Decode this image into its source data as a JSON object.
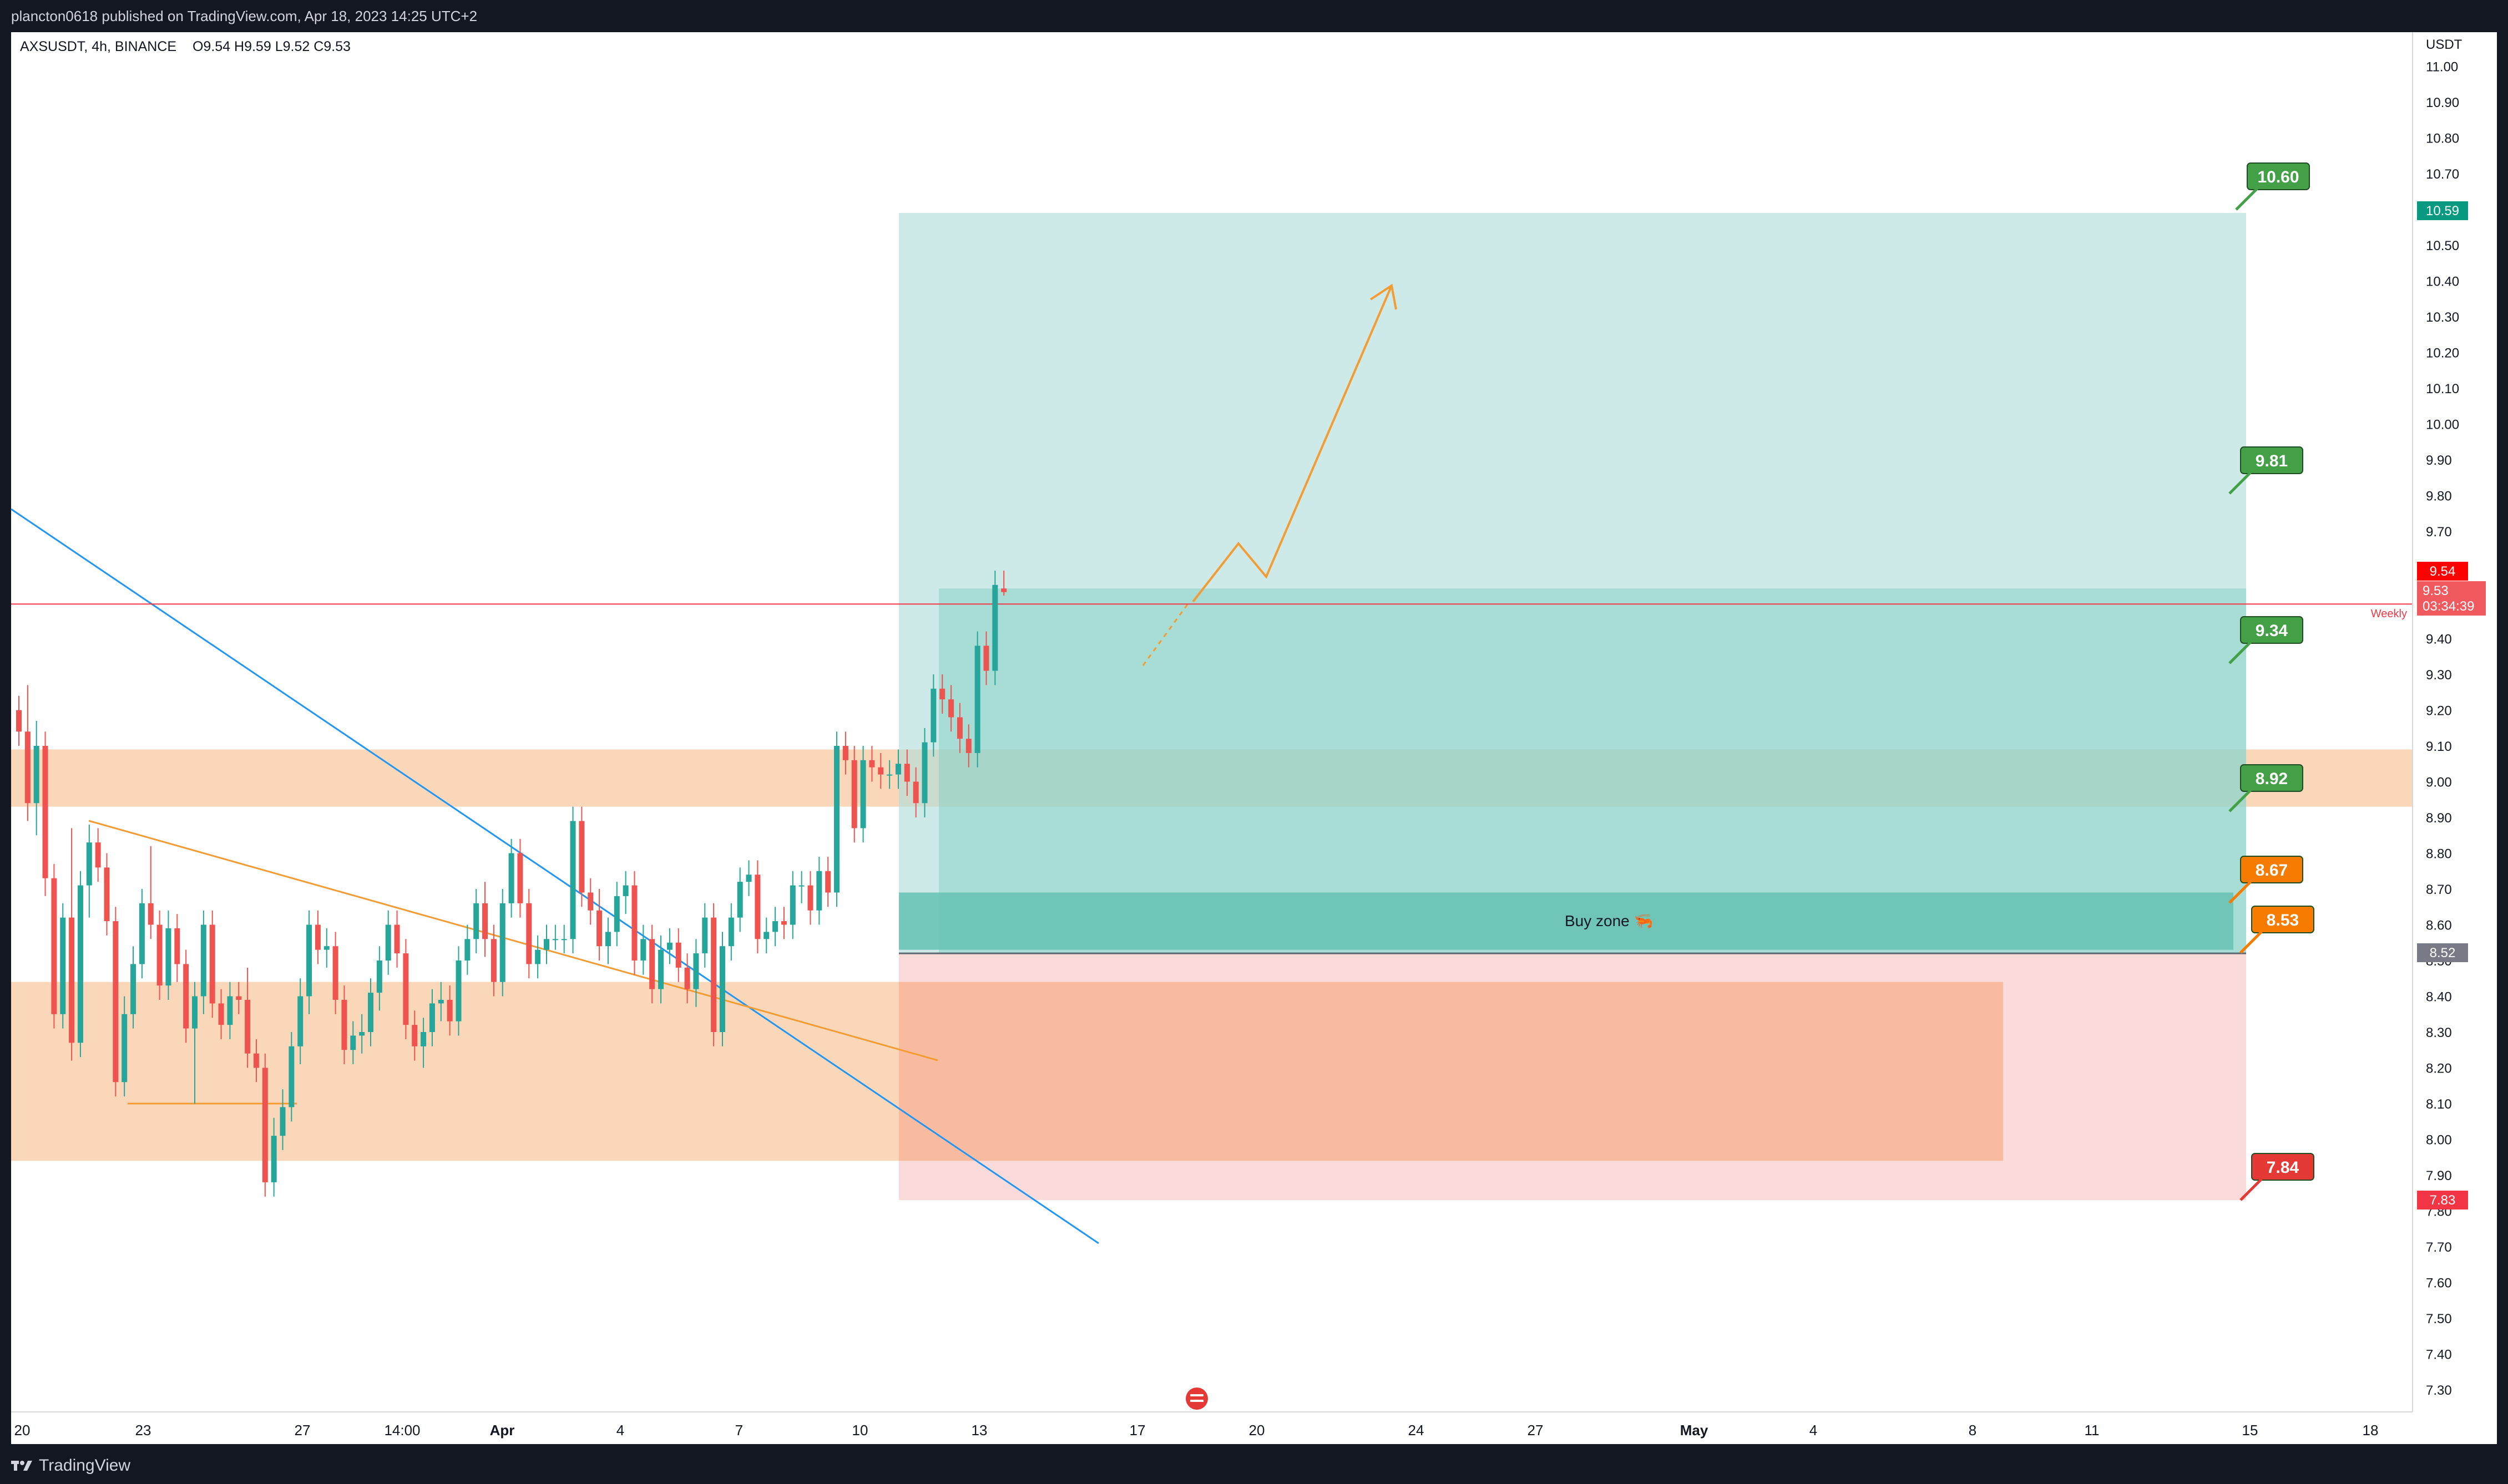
{
  "header": {
    "published": "plancton0618 published on TradingView.com, Apr 18, 2023 14:25 UTC+2",
    "symbol": "AXSUSDT, 4h, BINANCE",
    "ohlc": "O9.54  H9.59  L9.52  C9.53"
  },
  "footer": {
    "brand": "TradingView"
  },
  "chart_data": {
    "type": "candlestick",
    "currency_label": "USDT",
    "ylim": [
      7.2,
      11.03
    ],
    "y_ticks": [
      "11.00",
      "10.90",
      "10.80",
      "10.70",
      "10.60",
      "10.50",
      "10.40",
      "10.30",
      "10.20",
      "10.10",
      "10.00",
      "9.90",
      "9.80",
      "9.70",
      "9.60",
      "9.50",
      "9.40",
      "9.30",
      "9.20",
      "9.10",
      "9.00",
      "8.90",
      "8.80",
      "8.70",
      "8.60",
      "8.50",
      "8.40",
      "8.30",
      "8.20",
      "8.10",
      "8.00",
      "7.90",
      "7.80",
      "7.70",
      "7.60",
      "7.50",
      "7.40",
      "7.30"
    ],
    "x_ticks": [
      "20",
      "23",
      "27",
      "14:00",
      "Apr",
      "4",
      "7",
      "10",
      "13",
      "17",
      "20",
      "24",
      "27",
      "May",
      "4",
      "8",
      "11",
      "15",
      "18"
    ],
    "candles": [
      [
        9.2,
        9.24,
        9.1,
        9.14
      ],
      [
        9.14,
        9.27,
        8.89,
        8.94
      ],
      [
        8.94,
        9.17,
        8.85,
        9.1
      ],
      [
        9.1,
        9.14,
        8.68,
        8.73
      ],
      [
        8.73,
        8.77,
        8.31,
        8.35
      ],
      [
        8.35,
        8.66,
        8.31,
        8.62
      ],
      [
        8.62,
        8.87,
        8.22,
        8.27
      ],
      [
        8.27,
        8.75,
        8.23,
        8.71
      ],
      [
        8.71,
        8.88,
        8.62,
        8.83
      ],
      [
        8.83,
        8.87,
        8.72,
        8.76
      ],
      [
        8.76,
        8.8,
        8.57,
        8.61
      ],
      [
        8.61,
        8.65,
        8.12,
        8.16
      ],
      [
        8.16,
        8.4,
        8.12,
        8.35
      ],
      [
        8.35,
        8.54,
        8.31,
        8.49
      ],
      [
        8.49,
        8.7,
        8.45,
        8.66
      ],
      [
        8.66,
        8.82,
        8.56,
        8.6
      ],
      [
        8.6,
        8.64,
        8.39,
        8.43
      ],
      [
        8.43,
        8.64,
        8.39,
        8.59
      ],
      [
        8.59,
        8.63,
        8.44,
        8.49
      ],
      [
        8.49,
        8.53,
        8.27,
        8.31
      ],
      [
        8.31,
        8.44,
        8.1,
        8.4
      ],
      [
        8.4,
        8.64,
        8.35,
        8.6
      ],
      [
        8.6,
        8.64,
        8.34,
        8.38
      ],
      [
        8.38,
        8.42,
        8.28,
        8.32
      ],
      [
        8.32,
        8.44,
        8.28,
        8.4
      ],
      [
        8.4,
        8.44,
        8.35,
        8.39
      ],
      [
        8.39,
        8.48,
        8.2,
        8.24
      ],
      [
        8.24,
        8.28,
        8.16,
        8.2
      ],
      [
        8.2,
        8.24,
        7.84,
        7.88
      ],
      [
        7.88,
        8.06,
        7.84,
        8.01
      ],
      [
        8.01,
        8.14,
        7.97,
        8.09
      ],
      [
        8.09,
        8.3,
        8.05,
        8.26
      ],
      [
        8.26,
        8.45,
        8.21,
        8.4
      ],
      [
        8.4,
        8.64,
        8.35,
        8.6
      ],
      [
        8.6,
        8.64,
        8.49,
        8.53
      ],
      [
        8.53,
        8.59,
        8.48,
        8.54
      ],
      [
        8.54,
        8.58,
        8.35,
        8.39
      ],
      [
        8.39,
        8.43,
        8.21,
        8.25
      ],
      [
        8.25,
        8.33,
        8.21,
        8.29
      ],
      [
        8.29,
        8.35,
        8.24,
        8.3
      ],
      [
        8.3,
        8.45,
        8.26,
        8.41
      ],
      [
        8.41,
        8.54,
        8.36,
        8.5
      ],
      [
        8.5,
        8.64,
        8.46,
        8.6
      ],
      [
        8.6,
        8.64,
        8.48,
        8.52
      ],
      [
        8.52,
        8.56,
        8.28,
        8.32
      ],
      [
        8.32,
        8.36,
        8.22,
        8.26
      ],
      [
        8.26,
        8.34,
        8.2,
        8.3
      ],
      [
        8.3,
        8.42,
        8.26,
        8.38
      ],
      [
        8.38,
        8.44,
        8.33,
        8.39
      ],
      [
        8.39,
        8.43,
        8.29,
        8.33
      ],
      [
        8.33,
        8.54,
        8.29,
        8.5
      ],
      [
        8.5,
        8.6,
        8.46,
        8.56
      ],
      [
        8.56,
        8.7,
        8.52,
        8.66
      ],
      [
        8.66,
        8.72,
        8.51,
        8.56
      ],
      [
        8.56,
        8.6,
        8.4,
        8.44
      ],
      [
        8.44,
        8.7,
        8.4,
        8.66
      ],
      [
        8.66,
        8.84,
        8.62,
        8.8
      ],
      [
        8.8,
        8.84,
        8.62,
        8.66
      ],
      [
        8.66,
        8.7,
        8.45,
        8.49
      ],
      [
        8.49,
        8.57,
        8.45,
        8.53
      ],
      [
        8.53,
        8.6,
        8.49,
        8.56
      ],
      [
        8.56,
        8.6,
        8.53,
        8.56
      ],
      [
        8.56,
        8.6,
        8.52,
        8.56
      ],
      [
        8.56,
        8.93,
        8.52,
        8.89
      ],
      [
        8.89,
        8.93,
        8.65,
        8.69
      ],
      [
        8.69,
        8.73,
        8.6,
        8.64
      ],
      [
        8.64,
        8.7,
        8.5,
        8.54
      ],
      [
        8.54,
        8.62,
        8.49,
        8.58
      ],
      [
        8.58,
        8.72,
        8.54,
        8.68
      ],
      [
        8.68,
        8.75,
        8.63,
        8.71
      ],
      [
        8.71,
        8.75,
        8.46,
        8.5
      ],
      [
        8.5,
        8.6,
        8.46,
        8.56
      ],
      [
        8.56,
        8.6,
        8.38,
        8.42
      ],
      [
        8.42,
        8.57,
        8.38,
        8.53
      ],
      [
        8.53,
        8.59,
        8.49,
        8.55
      ],
      [
        8.55,
        8.59,
        8.44,
        8.48
      ],
      [
        8.48,
        8.52,
        8.38,
        8.42
      ],
      [
        8.42,
        8.56,
        8.37,
        8.52
      ],
      [
        8.52,
        8.66,
        8.48,
        8.62
      ],
      [
        8.62,
        8.66,
        8.26,
        8.3
      ],
      [
        8.3,
        8.58,
        8.26,
        8.54
      ],
      [
        8.54,
        8.66,
        8.5,
        8.62
      ],
      [
        8.62,
        8.76,
        8.58,
        8.72
      ],
      [
        8.72,
        8.78,
        8.68,
        8.74
      ],
      [
        8.74,
        8.78,
        8.52,
        8.56
      ],
      [
        8.56,
        8.62,
        8.52,
        8.58
      ],
      [
        8.58,
        8.65,
        8.54,
        8.61
      ],
      [
        8.61,
        8.65,
        8.56,
        8.6
      ],
      [
        8.6,
        8.75,
        8.56,
        8.71
      ],
      [
        8.71,
        8.75,
        8.66,
        8.71
      ],
      [
        8.71,
        8.75,
        8.6,
        8.64
      ],
      [
        8.64,
        8.79,
        8.6,
        8.75
      ],
      [
        8.75,
        8.79,
        8.65,
        8.69
      ],
      [
        8.69,
        9.14,
        8.65,
        9.1
      ],
      [
        9.1,
        9.14,
        9.02,
        9.06
      ],
      [
        9.06,
        9.1,
        8.83,
        8.87
      ],
      [
        8.87,
        9.1,
        8.83,
        9.06
      ],
      [
        9.06,
        9.1,
        9.0,
        9.04
      ],
      [
        9.04,
        9.08,
        8.98,
        9.02
      ],
      [
        9.02,
        9.06,
        8.98,
        9.02
      ],
      [
        9.02,
        9.09,
        8.98,
        9.05
      ],
      [
        9.05,
        9.09,
        8.96,
        9.0
      ],
      [
        9.0,
        9.04,
        8.9,
        8.94
      ],
      [
        8.94,
        9.15,
        8.9,
        9.11
      ],
      [
        9.11,
        9.3,
        9.07,
        9.26
      ],
      [
        9.26,
        9.3,
        9.19,
        9.23
      ],
      [
        9.23,
        9.27,
        9.14,
        9.18
      ],
      [
        9.18,
        9.22,
        9.08,
        9.12
      ],
      [
        9.12,
        9.16,
        9.04,
        9.08
      ],
      [
        9.08,
        9.42,
        9.04,
        9.38
      ],
      [
        9.38,
        9.42,
        9.27,
        9.31
      ],
      [
        9.31,
        9.59,
        9.27,
        9.55
      ],
      [
        9.54,
        9.59,
        9.52,
        9.53
      ]
    ],
    "zones": [
      {
        "label": "",
        "from": 8.93,
        "to": 9.09,
        "color": "#f7c9a0"
      },
      {
        "label": "",
        "from": 7.94,
        "to": 8.44,
        "color": "#f7c9a0"
      },
      {
        "label": "Buy zone 🦐",
        "from": 8.53,
        "to": 8.69,
        "color": "#5fbfb0"
      }
    ],
    "targets": [
      "10.60",
      "9.81",
      "9.34",
      "8.92"
    ],
    "entries": [
      "8.67",
      "8.53"
    ],
    "stop": "7.84",
    "price_labels": {
      "target_axis": "10.59",
      "high": "9.54",
      "last": "9.53",
      "countdown": "03:34:39",
      "buy_axis": "8.52",
      "stop_axis": "7.83",
      "weekly": "Weekly"
    },
    "colors": {
      "up": "#26a69a",
      "down": "#ef5350",
      "target": "#43a047",
      "entry": "#f57c00",
      "stop": "#e53935",
      "profit_zone": "#b2dfdb",
      "loss_zone": "#f8bbbb",
      "trend_blue": "#2196f3",
      "trend_orange": "#f39c33"
    }
  }
}
